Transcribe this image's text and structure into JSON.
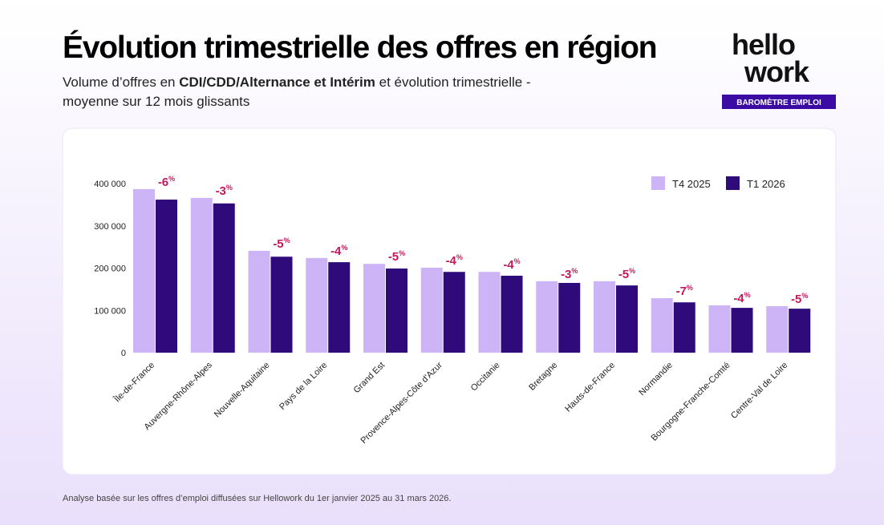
{
  "chart_data": {
    "type": "bar",
    "title": "Évolution trimestrielle des offres en région",
    "subtitle_parts": [
      "Volume d’offres en ",
      "CDI/CDD/Alternance et Intérim",
      " et évolution trimestrielle -",
      "moyenne sur 12 mois glissants"
    ],
    "footnote": "Analyse basée sur les offres d’emploi diffusées sur Hellowork du 1er janvier 2025 au 31 mars 2026.",
    "categories": [
      "Île-de-France",
      "Auvergne-Rhône-Alpes",
      "Nouvelle-Aquitaine",
      "Pays de la Loire",
      "Grand Est",
      "Provence-Alpes-Côte d'Azur",
      "Occitanie",
      "Bretagne",
      "Hauts-de-France",
      "Normandie",
      "Bourgogne-Franche-Comté",
      "Centre-Val de Loire"
    ],
    "series": [
      {
        "name": "T4 2025",
        "color": "#cdb4f7",
        "values": [
          387000,
          366000,
          241000,
          224000,
          210000,
          201000,
          191000,
          169000,
          169000,
          129000,
          112000,
          110000
        ]
      },
      {
        "name": "T1 2026",
        "color": "#2e0a7a",
        "values": [
          362000,
          353000,
          227000,
          214000,
          199000,
          191000,
          182000,
          165000,
          159000,
          119000,
          106000,
          104000
        ]
      }
    ],
    "changes": [
      -6,
      -3,
      -5,
      -4,
      -5,
      -4,
      -4,
      -3,
      -5,
      -7,
      -4,
      -5
    ],
    "change_unit": "%",
    "change_color": "#c2185b",
    "ylim": [
      0,
      400000
    ],
    "yticks": [
      {
        "value": 0,
        "label": "0"
      },
      {
        "value": 100000,
        "label": "100 000"
      },
      {
        "value": 200000,
        "label": "200 000"
      },
      {
        "value": 300000,
        "label": "300 000"
      },
      {
        "value": 400000,
        "label": "400 000"
      }
    ],
    "grid": false,
    "legend": "top-right"
  },
  "brand": {
    "logo_top": "hello",
    "logo_bottom": "work",
    "badge": "BAROMÈTRE EMPLOI"
  }
}
